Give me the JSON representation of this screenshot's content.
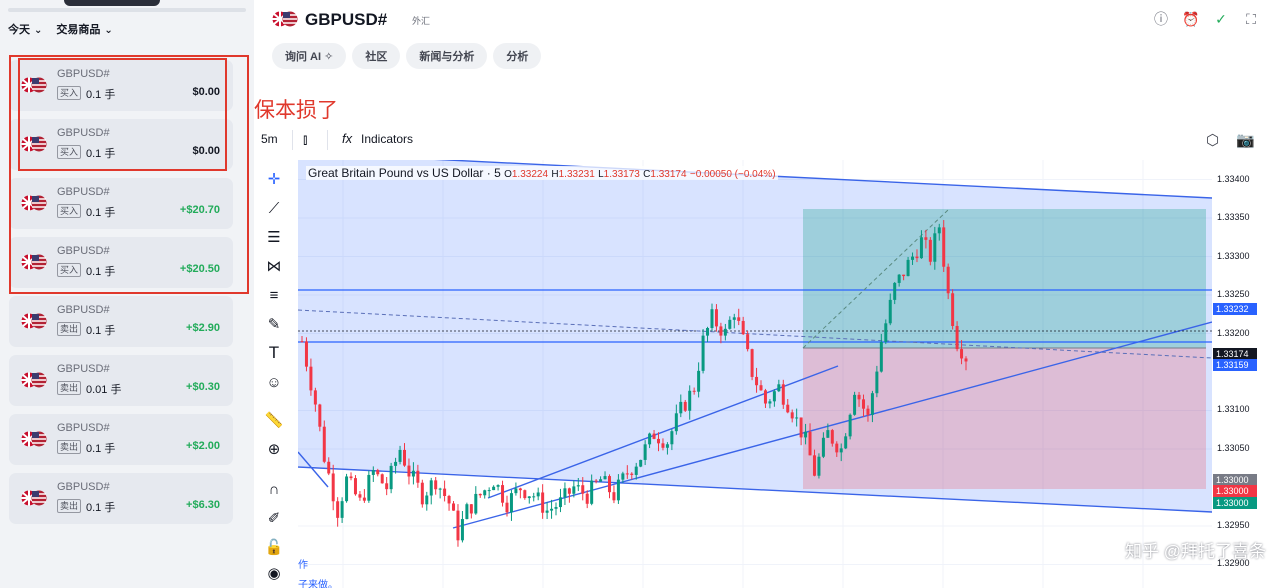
{
  "filters": [
    {
      "label": "今天"
    },
    {
      "label": "交易商品"
    }
  ],
  "positions": [
    {
      "symbol": "GBPUSD#",
      "side": "买入",
      "qty": "0.1 手",
      "pnl": "$0.00",
      "tone": "zero"
    },
    {
      "symbol": "GBPUSD#",
      "side": "买入",
      "qty": "0.1 手",
      "pnl": "$0.00",
      "tone": "zero"
    },
    {
      "symbol": "GBPUSD#",
      "side": "买入",
      "qty": "0.1 手",
      "pnl": "+$20.70",
      "tone": "pos"
    },
    {
      "symbol": "GBPUSD#",
      "side": "买入",
      "qty": "0.1 手",
      "pnl": "+$20.50",
      "tone": "pos"
    },
    {
      "symbol": "GBPUSD#",
      "side": "卖出",
      "qty": "0.1 手",
      "pnl": "+$2.90",
      "tone": "pos"
    },
    {
      "symbol": "GBPUSD#",
      "side": "卖出",
      "qty": "0.01 手",
      "pnl": "+$0.30",
      "tone": "pos"
    },
    {
      "symbol": "GBPUSD#",
      "side": "卖出",
      "qty": "0.1 手",
      "pnl": "+$2.00",
      "tone": "pos"
    },
    {
      "symbol": "GBPUSD#",
      "side": "卖出",
      "qty": "0.1 手",
      "pnl": "+$6.30",
      "tone": "pos"
    }
  ],
  "annotation": "保本损了",
  "header": {
    "title": "GBPUSD#",
    "badge": "外汇",
    "icons": [
      "info-icon",
      "alarm-icon",
      "check-icon",
      "fullscreen-icon"
    ]
  },
  "tabs": [
    {
      "label": "询问 AI ✧"
    },
    {
      "label": "社区"
    },
    {
      "label": "新闻与分析"
    },
    {
      "label": "分析"
    }
  ],
  "toolbar": {
    "timeframe": "5m",
    "indicators": "Indicators",
    "fx": "fx"
  },
  "legend": {
    "title": "Great Britain Pound vs US Dollar · 5",
    "o_label": "O",
    "o": "1.33224",
    "h_label": "H",
    "h": "1.33231",
    "l_label": "L",
    "l": "1.33173",
    "c_label": "C",
    "c": "1.33174",
    "change": "−0.00050 (−0.04%)"
  },
  "price_axis": {
    "ticks": [
      "1.33400",
      "1.33350",
      "1.33300",
      "1.33250",
      "1.33200",
      "1.33100",
      "1.33050",
      "1.32950",
      "1.32900"
    ],
    "labels": [
      {
        "value": "1.33232",
        "price": 1.33232,
        "color": "#2962ff"
      },
      {
        "value": "1.33174",
        "price": 1.33174,
        "color": "#131722"
      },
      {
        "value": "1.33159",
        "price": 1.33159,
        "color": "#2962ff"
      },
      {
        "value": "1.33000",
        "price": 1.3301,
        "color": "#787b86"
      },
      {
        "value": "1.33000",
        "price": 1.32995,
        "color": "#f23645"
      },
      {
        "value": "1.33000",
        "price": 1.3298,
        "color": "#089981"
      }
    ]
  },
  "chart_bottom_text": [
    "作",
    "子来做。"
  ],
  "watermark": "知乎 @拜托了喜条",
  "colors": {
    "up": "#089981",
    "down": "#f23645",
    "trendline": "#2962ff",
    "annotation": "#e0382c"
  },
  "chart_data": {
    "type": "candlestick",
    "symbol": "GBPUSD#",
    "interval": "5",
    "ylim": [
      1.32885,
      1.33415
    ],
    "trend_anchors": [
      [
        0,
        1.3319
      ],
      [
        3,
        1.3311
      ],
      [
        5,
        1.3304
      ],
      [
        8,
        1.3297
      ],
      [
        10,
        1.3301
      ],
      [
        13,
        1.3298
      ],
      [
        16,
        1.3302
      ],
      [
        19,
        1.33
      ],
      [
        22,
        1.3305
      ],
      [
        24,
        1.3302
      ],
      [
        27,
        1.3299
      ],
      [
        30,
        1.3301
      ],
      [
        33,
        1.3298
      ],
      [
        35,
        1.3294
      ],
      [
        37,
        1.3297
      ],
      [
        40,
        1.3299
      ],
      [
        43,
        1.3301
      ],
      [
        46,
        1.3298
      ],
      [
        49,
        1.33
      ],
      [
        52,
        1.3299
      ],
      [
        55,
        1.3297
      ],
      [
        58,
        1.3298
      ],
      [
        61,
        1.33
      ],
      [
        64,
        1.3299
      ],
      [
        67,
        1.3301
      ],
      [
        70,
        1.3299
      ],
      [
        73,
        1.3302
      ],
      [
        76,
        1.3304
      ],
      [
        79,
        1.3307
      ],
      [
        82,
        1.3306
      ],
      [
        85,
        1.331
      ],
      [
        88,
        1.3313
      ],
      [
        90,
        1.3319
      ],
      [
        92,
        1.3322
      ],
      [
        95,
        1.332
      ],
      [
        97,
        1.3323
      ],
      [
        99,
        1.3319
      ],
      [
        101,
        1.3315
      ],
      [
        104,
        1.3311
      ],
      [
        107,
        1.3313
      ],
      [
        110,
        1.331
      ],
      [
        113,
        1.3306
      ],
      [
        115,
        1.3302
      ],
      [
        118,
        1.3307
      ],
      [
        121,
        1.3305
      ],
      [
        124,
        1.3313
      ],
      [
        127,
        1.3309
      ],
      [
        130,
        1.3319
      ],
      [
        133,
        1.3326
      ],
      [
        136,
        1.3329
      ],
      [
        139,
        1.3332
      ],
      [
        141,
        1.333
      ],
      [
        143,
        1.3334
      ],
      [
        145,
        1.3325
      ],
      [
        147,
        1.3319
      ],
      [
        149,
        1.3317
      ]
    ]
  }
}
